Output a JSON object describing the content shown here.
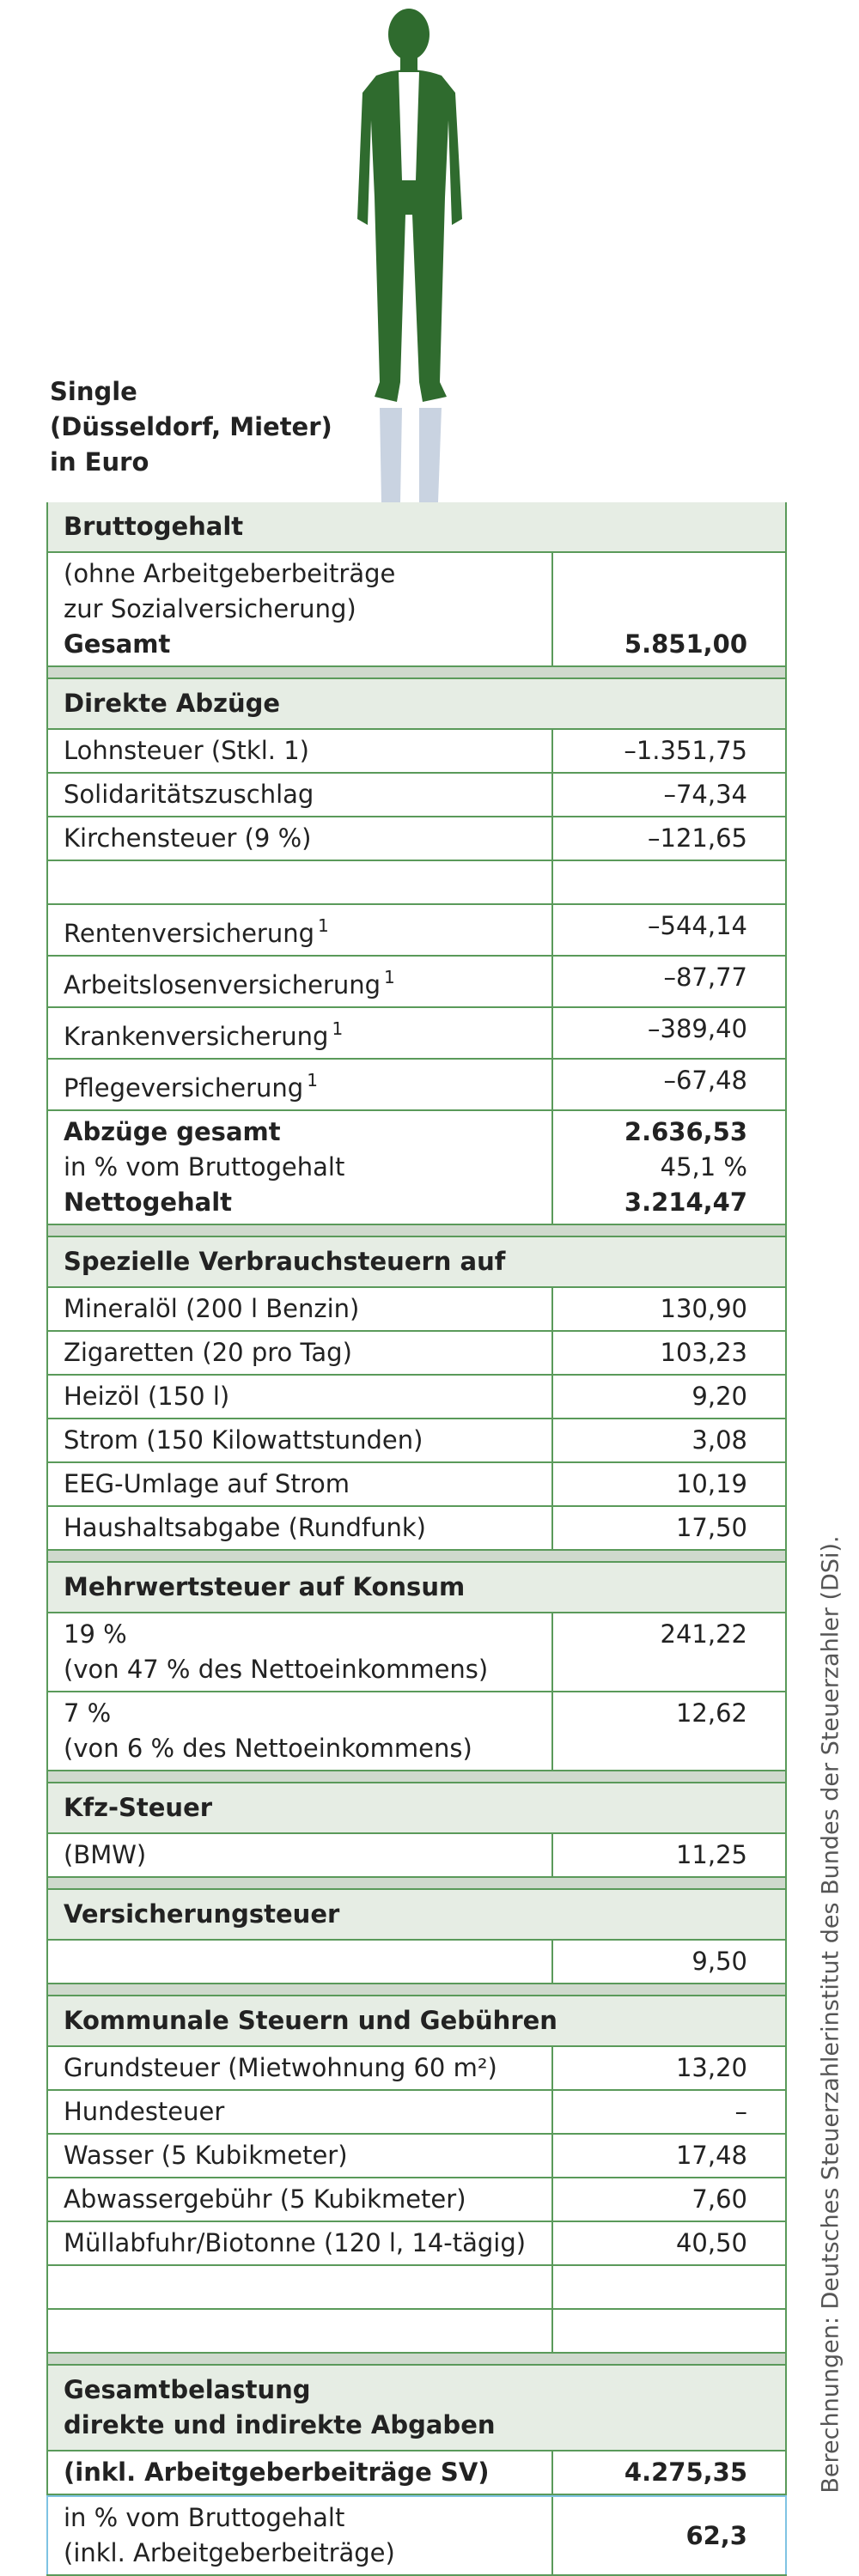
{
  "title_lines": [
    "Single",
    "(Düsseldorf, Mieter)",
    "in Euro"
  ],
  "sections": [
    {
      "header": [
        "Bruttogehalt"
      ],
      "rows": [
        {
          "lines": [
            {
              "label": "(ohne Arbeitgeberbeiträge"
            },
            {
              "label": "zur Sozialversicherung)"
            },
            {
              "label": "Gesamt",
              "value": "5.851,00",
              "bold": true
            }
          ]
        }
      ]
    },
    {
      "header": [
        "Direkte Abzüge"
      ],
      "rows": [
        {
          "lines": [
            {
              "label": "Lohnsteuer (Stkl. 1)",
              "value": "–1.351,75"
            }
          ]
        },
        {
          "lines": [
            {
              "label": "Solidaritätszuschlag",
              "value": "–74,34"
            }
          ]
        },
        {
          "lines": [
            {
              "label": "Kirchensteuer (9 %)",
              "value": "–121,65"
            }
          ]
        },
        {
          "lines": []
        },
        {
          "lines": [
            {
              "label": "Rentenversicherung",
              "note": "1",
              "value": "–544,14"
            }
          ]
        },
        {
          "lines": [
            {
              "label": "Arbeitslosenversicherung",
              "note": "1",
              "value": "–87,77"
            }
          ]
        },
        {
          "lines": [
            {
              "label": "Krankenversicherung",
              "note": "1",
              "value": "–389,40"
            }
          ]
        },
        {
          "lines": [
            {
              "label": "Pflegeversicherung",
              "note": "1",
              "value": "–67,48"
            }
          ]
        },
        {
          "lines": [
            {
              "label": "Abzüge gesamt",
              "value": "2.636,53",
              "bold": true
            },
            {
              "label": "in % vom Bruttogehalt",
              "value": "45,1 %"
            },
            {
              "label": "Nettogehalt",
              "value": "3.214,47",
              "bold": true
            }
          ]
        }
      ]
    },
    {
      "header": [
        "Spezielle Verbrauchsteuern auf"
      ],
      "rows": [
        {
          "lines": [
            {
              "label": "Mineralöl (200 l Benzin)",
              "value": "130,90"
            }
          ]
        },
        {
          "lines": [
            {
              "label": "Zigaretten (20 pro Tag)",
              "value": "103,23"
            }
          ]
        },
        {
          "lines": [
            {
              "label": "Heizöl (150 l)",
              "value": "9,20"
            }
          ]
        },
        {
          "lines": [
            {
              "label": "Strom (150 Kilowattstunden)",
              "value": "3,08"
            }
          ]
        },
        {
          "lines": [
            {
              "label": "EEG-Umlage auf Strom",
              "value": "10,19"
            }
          ]
        },
        {
          "lines": [
            {
              "label": "Haushaltsabgabe (Rundfunk)",
              "value": "17,50"
            }
          ]
        }
      ]
    },
    {
      "header": [
        "Mehrwertsteuer auf Konsum"
      ],
      "rows": [
        {
          "lines": [
            {
              "label": "19 %",
              "value": "241,22"
            },
            {
              "label": "(von 47 % des Nettoeinkommens)"
            }
          ]
        },
        {
          "lines": [
            {
              "label": "7 %",
              "value": "12,62"
            },
            {
              "label": "(von 6 % des Nettoeinkommens)"
            }
          ]
        }
      ]
    },
    {
      "header": [
        "Kfz-Steuer"
      ],
      "rows": [
        {
          "lines": [
            {
              "label": "(BMW)",
              "value": "11,25"
            }
          ]
        }
      ]
    },
    {
      "header": [
        "Versicherungsteuer"
      ],
      "rows": [
        {
          "lines": [
            {
              "value": "9,50"
            }
          ]
        }
      ]
    },
    {
      "header": [
        "Kommunale Steuern und Gebühren"
      ],
      "rows": [
        {
          "lines": [
            {
              "label": "Grundsteuer (Mietwohnung 60 m²)",
              "value": "13,20"
            }
          ]
        },
        {
          "lines": [
            {
              "label": "Hundesteuer",
              "value": "–"
            }
          ]
        },
        {
          "lines": [
            {
              "label": "Wasser (5 Kubikmeter)",
              "value": "17,48"
            }
          ]
        },
        {
          "lines": [
            {
              "label": "Abwassergebühr (5 Kubikmeter)",
              "value": "7,60"
            }
          ]
        },
        {
          "lines": [
            {
              "label": "Müllabfuhr/Biotonne (120 l, 14-tägig)",
              "value": "40,50"
            }
          ]
        },
        {
          "lines": []
        },
        {
          "lines": []
        }
      ]
    },
    {
      "header": [
        "Gesamtbelastung",
        "direkte und indirekte Abgaben"
      ],
      "rows": [
        {
          "lines": [
            {
              "label": "(inkl. Arbeitgeberbeiträge SV)",
              "value": "4.275,35",
              "bold": true
            }
          ]
        },
        {
          "lines": [
            {
              "label": "in % vom Bruttogehalt"
            },
            {
              "label": "(inkl. Arbeitgeberbeiträge)"
            }
          ],
          "value": "62,3"
        }
      ]
    }
  ],
  "source": "Berechnungen: Deutsches Steuerzahlerinstitut des Bundes der Steuerzahler (DSi)."
}
